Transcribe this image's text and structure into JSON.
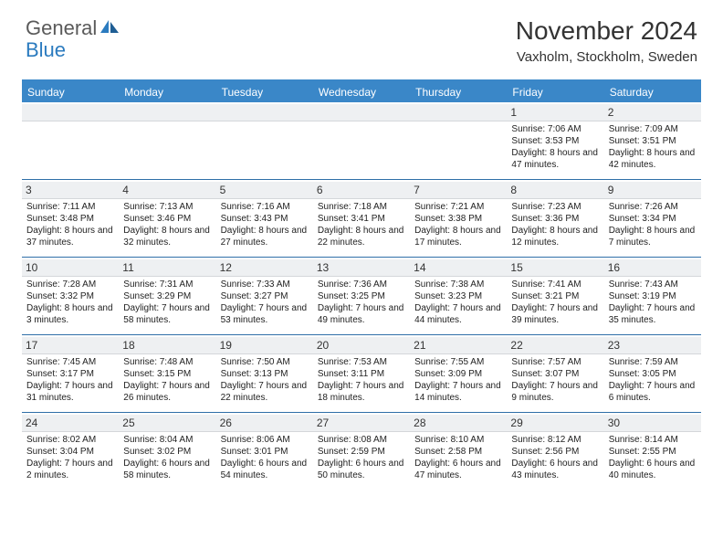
{
  "logo": {
    "general": "General",
    "blue": "Blue"
  },
  "title": "November 2024",
  "location": "Vaxholm, Stockholm, Sweden",
  "colors": {
    "header_bg": "#3a87c8",
    "header_text": "#ffffff",
    "daynum_bg": "#eef0f2",
    "week_border": "#2f6fa8",
    "brand_gray": "#5a5a5a",
    "brand_blue": "#2b7bbf"
  },
  "day_labels": [
    "Sunday",
    "Monday",
    "Tuesday",
    "Wednesday",
    "Thursday",
    "Friday",
    "Saturday"
  ],
  "weeks": [
    [
      {
        "n": "",
        "sr": "",
        "ss": "",
        "dl": ""
      },
      {
        "n": "",
        "sr": "",
        "ss": "",
        "dl": ""
      },
      {
        "n": "",
        "sr": "",
        "ss": "",
        "dl": ""
      },
      {
        "n": "",
        "sr": "",
        "ss": "",
        "dl": ""
      },
      {
        "n": "",
        "sr": "",
        "ss": "",
        "dl": ""
      },
      {
        "n": "1",
        "sr": "Sunrise: 7:06 AM",
        "ss": "Sunset: 3:53 PM",
        "dl": "Daylight: 8 hours and 47 minutes."
      },
      {
        "n": "2",
        "sr": "Sunrise: 7:09 AM",
        "ss": "Sunset: 3:51 PM",
        "dl": "Daylight: 8 hours and 42 minutes."
      }
    ],
    [
      {
        "n": "3",
        "sr": "Sunrise: 7:11 AM",
        "ss": "Sunset: 3:48 PM",
        "dl": "Daylight: 8 hours and 37 minutes."
      },
      {
        "n": "4",
        "sr": "Sunrise: 7:13 AM",
        "ss": "Sunset: 3:46 PM",
        "dl": "Daylight: 8 hours and 32 minutes."
      },
      {
        "n": "5",
        "sr": "Sunrise: 7:16 AM",
        "ss": "Sunset: 3:43 PM",
        "dl": "Daylight: 8 hours and 27 minutes."
      },
      {
        "n": "6",
        "sr": "Sunrise: 7:18 AM",
        "ss": "Sunset: 3:41 PM",
        "dl": "Daylight: 8 hours and 22 minutes."
      },
      {
        "n": "7",
        "sr": "Sunrise: 7:21 AM",
        "ss": "Sunset: 3:38 PM",
        "dl": "Daylight: 8 hours and 17 minutes."
      },
      {
        "n": "8",
        "sr": "Sunrise: 7:23 AM",
        "ss": "Sunset: 3:36 PM",
        "dl": "Daylight: 8 hours and 12 minutes."
      },
      {
        "n": "9",
        "sr": "Sunrise: 7:26 AM",
        "ss": "Sunset: 3:34 PM",
        "dl": "Daylight: 8 hours and 7 minutes."
      }
    ],
    [
      {
        "n": "10",
        "sr": "Sunrise: 7:28 AM",
        "ss": "Sunset: 3:32 PM",
        "dl": "Daylight: 8 hours and 3 minutes."
      },
      {
        "n": "11",
        "sr": "Sunrise: 7:31 AM",
        "ss": "Sunset: 3:29 PM",
        "dl": "Daylight: 7 hours and 58 minutes."
      },
      {
        "n": "12",
        "sr": "Sunrise: 7:33 AM",
        "ss": "Sunset: 3:27 PM",
        "dl": "Daylight: 7 hours and 53 minutes."
      },
      {
        "n": "13",
        "sr": "Sunrise: 7:36 AM",
        "ss": "Sunset: 3:25 PM",
        "dl": "Daylight: 7 hours and 49 minutes."
      },
      {
        "n": "14",
        "sr": "Sunrise: 7:38 AM",
        "ss": "Sunset: 3:23 PM",
        "dl": "Daylight: 7 hours and 44 minutes."
      },
      {
        "n": "15",
        "sr": "Sunrise: 7:41 AM",
        "ss": "Sunset: 3:21 PM",
        "dl": "Daylight: 7 hours and 39 minutes."
      },
      {
        "n": "16",
        "sr": "Sunrise: 7:43 AM",
        "ss": "Sunset: 3:19 PM",
        "dl": "Daylight: 7 hours and 35 minutes."
      }
    ],
    [
      {
        "n": "17",
        "sr": "Sunrise: 7:45 AM",
        "ss": "Sunset: 3:17 PM",
        "dl": "Daylight: 7 hours and 31 minutes."
      },
      {
        "n": "18",
        "sr": "Sunrise: 7:48 AM",
        "ss": "Sunset: 3:15 PM",
        "dl": "Daylight: 7 hours and 26 minutes."
      },
      {
        "n": "19",
        "sr": "Sunrise: 7:50 AM",
        "ss": "Sunset: 3:13 PM",
        "dl": "Daylight: 7 hours and 22 minutes."
      },
      {
        "n": "20",
        "sr": "Sunrise: 7:53 AM",
        "ss": "Sunset: 3:11 PM",
        "dl": "Daylight: 7 hours and 18 minutes."
      },
      {
        "n": "21",
        "sr": "Sunrise: 7:55 AM",
        "ss": "Sunset: 3:09 PM",
        "dl": "Daylight: 7 hours and 14 minutes."
      },
      {
        "n": "22",
        "sr": "Sunrise: 7:57 AM",
        "ss": "Sunset: 3:07 PM",
        "dl": "Daylight: 7 hours and 9 minutes."
      },
      {
        "n": "23",
        "sr": "Sunrise: 7:59 AM",
        "ss": "Sunset: 3:05 PM",
        "dl": "Daylight: 7 hours and 6 minutes."
      }
    ],
    [
      {
        "n": "24",
        "sr": "Sunrise: 8:02 AM",
        "ss": "Sunset: 3:04 PM",
        "dl": "Daylight: 7 hours and 2 minutes."
      },
      {
        "n": "25",
        "sr": "Sunrise: 8:04 AM",
        "ss": "Sunset: 3:02 PM",
        "dl": "Daylight: 6 hours and 58 minutes."
      },
      {
        "n": "26",
        "sr": "Sunrise: 8:06 AM",
        "ss": "Sunset: 3:01 PM",
        "dl": "Daylight: 6 hours and 54 minutes."
      },
      {
        "n": "27",
        "sr": "Sunrise: 8:08 AM",
        "ss": "Sunset: 2:59 PM",
        "dl": "Daylight: 6 hours and 50 minutes."
      },
      {
        "n": "28",
        "sr": "Sunrise: 8:10 AM",
        "ss": "Sunset: 2:58 PM",
        "dl": "Daylight: 6 hours and 47 minutes."
      },
      {
        "n": "29",
        "sr": "Sunrise: 8:12 AM",
        "ss": "Sunset: 2:56 PM",
        "dl": "Daylight: 6 hours and 43 minutes."
      },
      {
        "n": "30",
        "sr": "Sunrise: 8:14 AM",
        "ss": "Sunset: 2:55 PM",
        "dl": "Daylight: 6 hours and 40 minutes."
      }
    ]
  ]
}
